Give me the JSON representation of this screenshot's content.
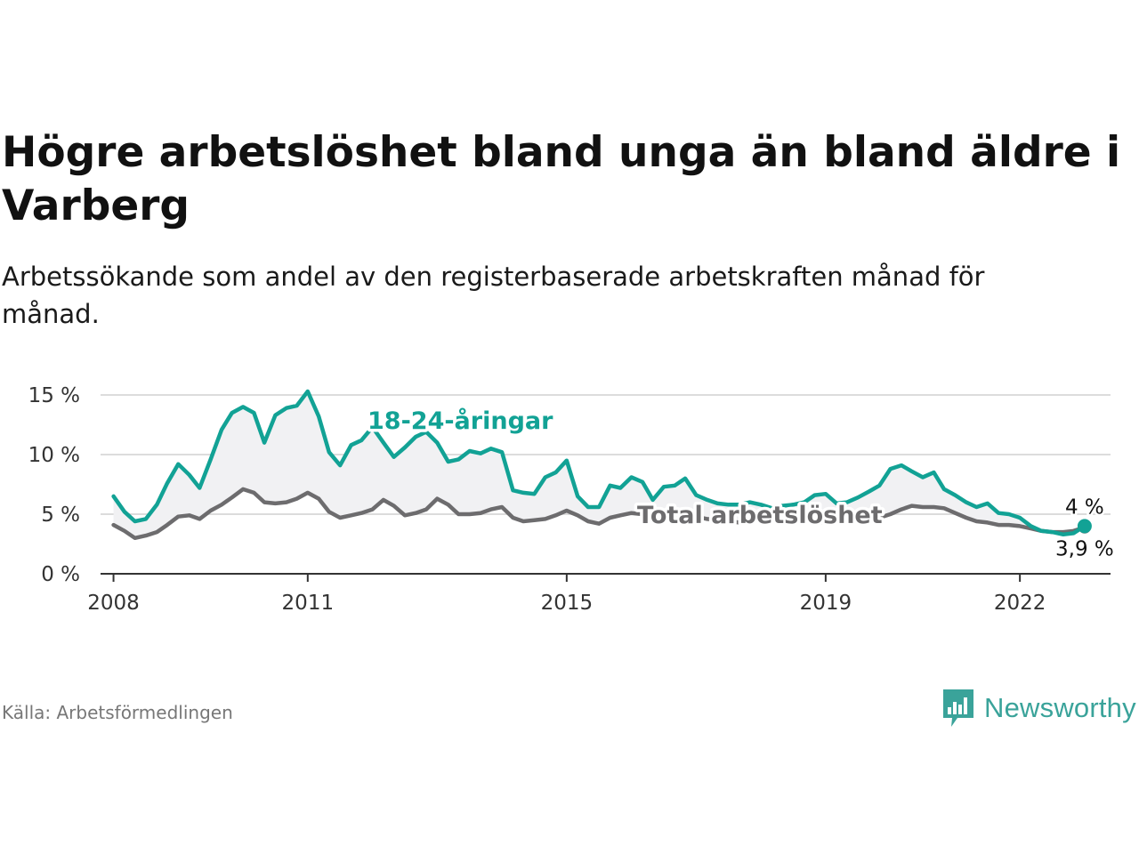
{
  "title": "Högre arbetslöshet bland unga än bland äldre i Varberg",
  "subtitle": "Arbetssökande som andel av den registerbaserade arbetskraften månad för månad.",
  "source": "Källa: Arbetsförmedlingen",
  "brand": "Newsworthy",
  "colors": {
    "youth": "#12a295",
    "total": "#6d6c6e",
    "band": "#f1f1f3",
    "grid": "#dcdcdc",
    "axis": "#333333"
  },
  "chart_data": {
    "type": "line",
    "title": "Högre arbetslöshet bland unga än bland äldre i Varberg",
    "xlabel": "",
    "ylabel": "",
    "ylim": [
      0,
      15
    ],
    "xlim": [
      2007.8,
      2023.4
    ],
    "y_ticks": [
      0,
      5,
      10,
      15
    ],
    "y_tick_labels": [
      "0 %",
      "5 %",
      "10 %",
      "15 %"
    ],
    "x_ticks": [
      2008,
      2011,
      2015,
      2019,
      2022
    ],
    "x_tick_labels": [
      "2008",
      "2011",
      "2015",
      "2019",
      "2022"
    ],
    "grid": true,
    "series": [
      {
        "name": "18-24-åringar",
        "label": "18-24-åringar",
        "color": "#12a295",
        "end_label": "4 %",
        "x": [
          2008.0,
          2008.17,
          2008.33,
          2008.5,
          2008.67,
          2008.83,
          2009.0,
          2009.17,
          2009.33,
          2009.5,
          2009.67,
          2009.83,
          2010.0,
          2010.17,
          2010.33,
          2010.5,
          2010.67,
          2010.83,
          2011.0,
          2011.17,
          2011.33,
          2011.5,
          2011.67,
          2011.83,
          2012.0,
          2012.17,
          2012.33,
          2012.5,
          2012.67,
          2012.83,
          2013.0,
          2013.17,
          2013.33,
          2013.5,
          2013.67,
          2013.83,
          2014.0,
          2014.17,
          2014.33,
          2014.5,
          2014.67,
          2014.83,
          2015.0,
          2015.17,
          2015.33,
          2015.5,
          2015.67,
          2015.83,
          2016.0,
          2016.17,
          2016.33,
          2016.5,
          2016.67,
          2016.83,
          2017.0,
          2017.17,
          2017.33,
          2017.5,
          2017.67,
          2017.83,
          2018.0,
          2018.17,
          2018.33,
          2018.5,
          2018.67,
          2018.83,
          2019.0,
          2019.17,
          2019.33,
          2019.5,
          2019.67,
          2019.83,
          2020.0,
          2020.17,
          2020.33,
          2020.5,
          2020.67,
          2020.83,
          2021.0,
          2021.17,
          2021.33,
          2021.5,
          2021.67,
          2021.83,
          2022.0,
          2022.17,
          2022.33,
          2022.5,
          2022.67,
          2022.83,
          2023.0
        ],
        "y": [
          6.5,
          5.2,
          4.4,
          4.6,
          5.8,
          7.6,
          9.2,
          8.3,
          7.2,
          9.6,
          12.1,
          13.5,
          14.0,
          13.5,
          11.0,
          13.3,
          13.9,
          14.1,
          15.3,
          13.2,
          10.2,
          9.1,
          10.8,
          11.2,
          12.3,
          11.0,
          9.8,
          10.6,
          11.5,
          11.9,
          11.0,
          9.4,
          9.6,
          10.3,
          10.1,
          10.5,
          10.2,
          7.0,
          6.8,
          6.7,
          8.1,
          8.5,
          9.5,
          6.5,
          5.6,
          5.6,
          7.4,
          7.2,
          8.1,
          7.7,
          6.2,
          7.3,
          7.4,
          8.0,
          6.6,
          6.2,
          5.9,
          5.8,
          5.8,
          6.0,
          5.8,
          5.5,
          5.7,
          5.8,
          6.0,
          6.6,
          6.7,
          5.9,
          6.0,
          6.4,
          6.9,
          7.4,
          8.8,
          9.1,
          8.6,
          8.1,
          8.5,
          7.1,
          6.6,
          6.0,
          5.6,
          5.9,
          5.1,
          5.0,
          4.7,
          4.0,
          3.6,
          3.5,
          3.3,
          3.4,
          4.0
        ]
      },
      {
        "name": "Total arbetslöshet",
        "label": "Total arbetslöshet",
        "color": "#6d6c6e",
        "end_label": "3,9 %",
        "x": [
          2008.0,
          2008.17,
          2008.33,
          2008.5,
          2008.67,
          2008.83,
          2009.0,
          2009.17,
          2009.33,
          2009.5,
          2009.67,
          2009.83,
          2010.0,
          2010.17,
          2010.33,
          2010.5,
          2010.67,
          2010.83,
          2011.0,
          2011.17,
          2011.33,
          2011.5,
          2011.67,
          2011.83,
          2012.0,
          2012.17,
          2012.33,
          2012.5,
          2012.67,
          2012.83,
          2013.0,
          2013.17,
          2013.33,
          2013.5,
          2013.67,
          2013.83,
          2014.0,
          2014.17,
          2014.33,
          2014.5,
          2014.67,
          2014.83,
          2015.0,
          2015.17,
          2015.33,
          2015.5,
          2015.67,
          2015.83,
          2016.0,
          2016.17,
          2016.33,
          2016.5,
          2016.67,
          2016.83,
          2017.0,
          2017.17,
          2017.33,
          2017.5,
          2017.67,
          2017.83,
          2018.0,
          2018.17,
          2018.33,
          2018.5,
          2018.67,
          2018.83,
          2019.0,
          2019.17,
          2019.33,
          2019.5,
          2019.67,
          2019.83,
          2020.0,
          2020.17,
          2020.33,
          2020.5,
          2020.67,
          2020.83,
          2021.0,
          2021.17,
          2021.33,
          2021.5,
          2021.67,
          2021.83,
          2022.0,
          2022.17,
          2022.33,
          2022.5,
          2022.67,
          2022.83,
          2023.0
        ],
        "y": [
          4.1,
          3.6,
          3.0,
          3.2,
          3.5,
          4.1,
          4.8,
          4.9,
          4.6,
          5.3,
          5.8,
          6.4,
          7.1,
          6.8,
          6.0,
          5.9,
          6.0,
          6.3,
          6.8,
          6.3,
          5.2,
          4.7,
          4.9,
          5.1,
          5.4,
          6.2,
          5.7,
          4.9,
          5.1,
          5.4,
          6.3,
          5.8,
          5.0,
          5.0,
          5.1,
          5.4,
          5.6,
          4.7,
          4.4,
          4.5,
          4.6,
          4.9,
          5.3,
          4.9,
          4.4,
          4.2,
          4.7,
          4.9,
          5.1,
          5.0,
          4.9,
          4.8,
          5.0,
          4.9,
          4.8,
          4.6,
          4.5,
          4.4,
          4.3,
          4.4,
          4.5,
          4.5,
          4.5,
          4.4,
          4.4,
          4.3,
          4.3,
          4.4,
          4.3,
          4.4,
          4.6,
          4.7,
          5.0,
          5.4,
          5.7,
          5.6,
          5.6,
          5.5,
          5.1,
          4.7,
          4.4,
          4.3,
          4.1,
          4.1,
          4.0,
          3.8,
          3.6,
          3.5,
          3.5,
          3.6,
          3.9
        ]
      }
    ]
  }
}
